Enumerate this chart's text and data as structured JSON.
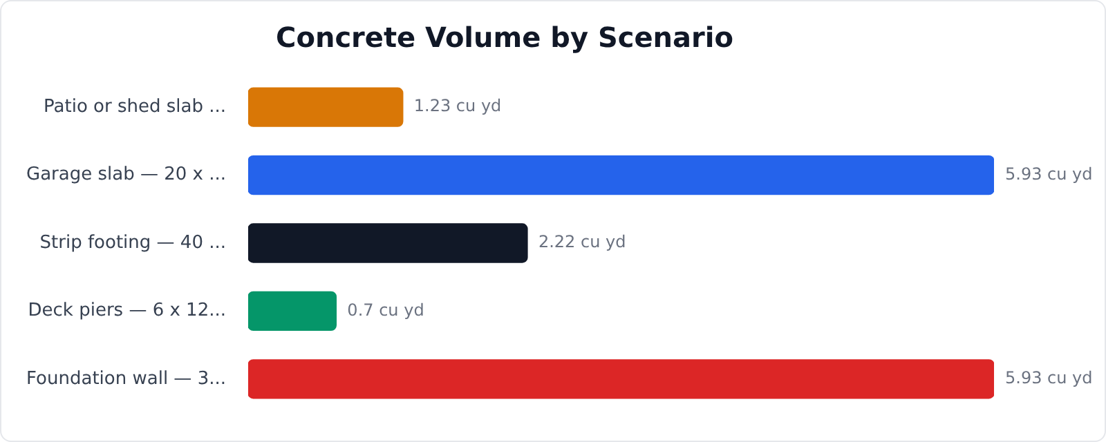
{
  "chart_data": {
    "type": "bar",
    "title": "Concrete Volume by Scenario",
    "orientation": "horizontal",
    "tick_labels": "y",
    "categories": [
      "Patio or shed slab ...",
      "Garage slab — 20 x ...",
      "Strip footing — 40 ...",
      "Deck piers — 6 x 12...",
      "Foundation wall — 3..."
    ],
    "values": [
      1.23,
      5.93,
      2.22,
      0.7,
      5.93
    ],
    "value_labels": [
      "1.23 cu yd",
      "5.93 cu yd",
      "2.22 cu yd",
      "0.7 cu yd",
      "5.93 cu yd"
    ],
    "colors": [
      "#d97706",
      "#2563eb",
      "#111827",
      "#059669",
      "#dc2626"
    ],
    "grid": false,
    "legend": false
  }
}
